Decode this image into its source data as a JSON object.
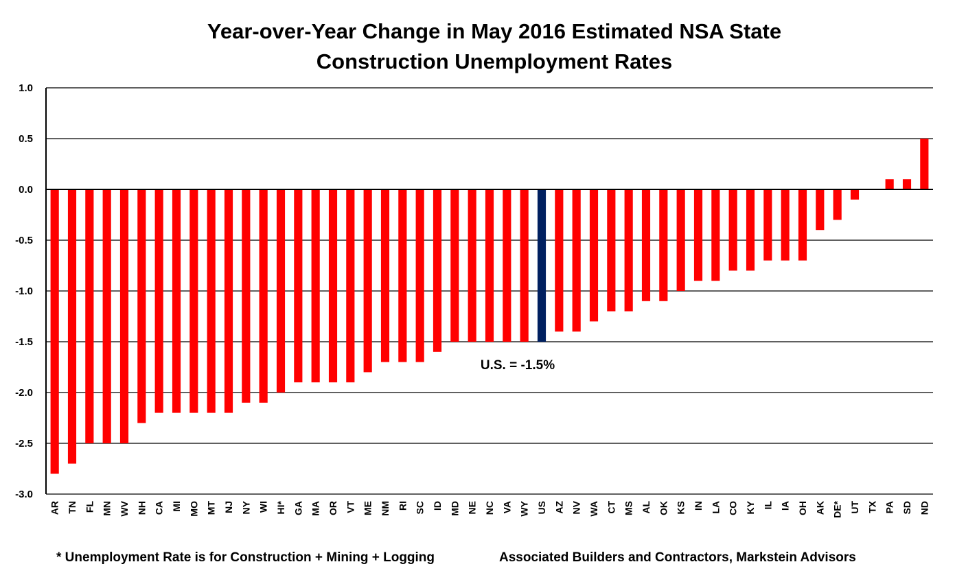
{
  "chart_data": {
    "type": "bar",
    "title": [
      "Year-over-Year Change in May 2016 Estimated NSA State",
      "Construction Unemployment Rates"
    ],
    "xlabel": "",
    "ylabel": "",
    "ylim": [
      -3.0,
      1.0
    ],
    "yticks": [
      1.0,
      0.5,
      0.0,
      -0.5,
      -1.0,
      -1.5,
      -2.0,
      -2.5,
      -3.0
    ],
    "ytick_labels": [
      "1.0",
      "0.5",
      "0.0",
      "-0.5",
      "-1.0",
      "-1.5",
      "-2.0",
      "-2.5",
      "-3.0"
    ],
    "grid": true,
    "categories": [
      "AR",
      "TN",
      "FL",
      "MN",
      "WV",
      "NH",
      "CA",
      "MI",
      "MO",
      "MT",
      "NJ",
      "NY",
      "WI",
      "HI*",
      "GA",
      "MA",
      "OR",
      "VT",
      "ME",
      "NM",
      "RI",
      "SC",
      "ID",
      "MD",
      "NE",
      "NC",
      "VA",
      "WY",
      "US",
      "AZ",
      "NV",
      "WA",
      "CT",
      "MS",
      "AL",
      "OK",
      "KS",
      "IN",
      "LA",
      "CO",
      "KY",
      "IL",
      "IA",
      "OH",
      "AK",
      "DE*",
      "UT",
      "TX",
      "PA",
      "SD",
      "ND"
    ],
    "values": [
      -2.8,
      -2.7,
      -2.5,
      -2.5,
      -2.5,
      -2.3,
      -2.2,
      -2.2,
      -2.2,
      -2.2,
      -2.2,
      -2.1,
      -2.1,
      -2.0,
      -1.9,
      -1.9,
      -1.9,
      -1.9,
      -1.8,
      -1.7,
      -1.7,
      -1.7,
      -1.6,
      -1.5,
      -1.5,
      -1.5,
      -1.5,
      -1.5,
      -1.5,
      -1.4,
      -1.4,
      -1.3,
      -1.2,
      -1.2,
      -1.1,
      -1.1,
      -1.0,
      -0.9,
      -0.9,
      -0.8,
      -0.8,
      -0.7,
      -0.7,
      -0.7,
      -0.4,
      -0.3,
      -0.1,
      0.0,
      0.1,
      0.1,
      0.5
    ],
    "highlight_category": "US",
    "colors": {
      "bar": "#ff0000",
      "highlight": "#002060",
      "grid": "#000000"
    },
    "annotations": [
      {
        "text": "U.S. = -1.5%",
        "near": "US"
      }
    ]
  },
  "footer": {
    "note": "* Unemployment Rate is for Construction + Mining + Logging",
    "source": "Associated Builders and Contractors, Markstein Advisors"
  }
}
